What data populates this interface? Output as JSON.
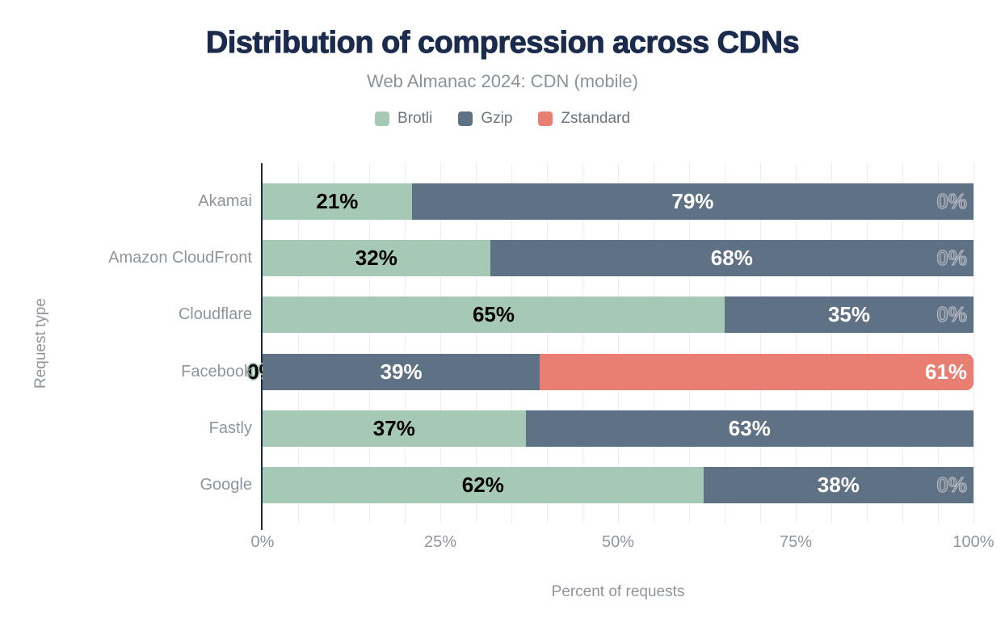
{
  "header": {
    "title": "Distribution of compression across CDNs",
    "subtitle": "Web Almanac 2024: CDN (mobile)"
  },
  "colors": {
    "title_navy": "#1b2b4d",
    "brotli_green": "#a6c9b6",
    "gzip_slate": "#5e7185",
    "zstandard_salmon": "#e97e72",
    "axis_gray": "#8f959d",
    "gridline": "#ededf1",
    "background": "#ffffff"
  },
  "chart_data": {
    "type": "bar",
    "orientation": "horizontal-stacked",
    "title": "Distribution of compression across CDNs",
    "subtitle": "Web Almanac 2024: CDN (mobile)",
    "xlabel": "Percent of requests",
    "ylabel": "Request type",
    "xlim": [
      0,
      100
    ],
    "x_ticks": [
      {
        "label": "0%",
        "value": 0
      },
      {
        "label": "25%",
        "value": 25
      },
      {
        "label": "50%",
        "value": 50
      },
      {
        "label": "75%",
        "value": 75
      },
      {
        "label": "100%",
        "value": 100
      }
    ],
    "grid": {
      "visible": true,
      "step_percent": 5
    },
    "legend_position": "top",
    "categories": [
      "Akamai",
      "Amazon CloudFront",
      "Cloudflare",
      "Facebook",
      "Fastly",
      "Google"
    ],
    "series": [
      {
        "name": "Brotli",
        "color": "#a6c9b6",
        "label_style": "black-with-green-halo",
        "values": [
          21,
          32,
          65,
          0,
          37,
          62
        ],
        "labels": [
          "21%",
          "32%",
          "65%",
          "0%",
          "37%",
          "62%"
        ]
      },
      {
        "name": "Gzip",
        "color": "#5e7185",
        "label_style": "white",
        "values": [
          79,
          68,
          35,
          39,
          63,
          38
        ],
        "labels": [
          "79%",
          "68%",
          "35%",
          "39%",
          "63%",
          "38%"
        ]
      },
      {
        "name": "Zstandard",
        "color": "#e97e72",
        "label_style": "white-end-aligned",
        "values": [
          0,
          0,
          0,
          61,
          0,
          0
        ],
        "labels": [
          "0%",
          "0%",
          "0%",
          "61%",
          null,
          "0%"
        ]
      }
    ]
  },
  "layout_text": {
    "x_axis_title": "Percent of requests",
    "y_axis_title": "Request type"
  }
}
